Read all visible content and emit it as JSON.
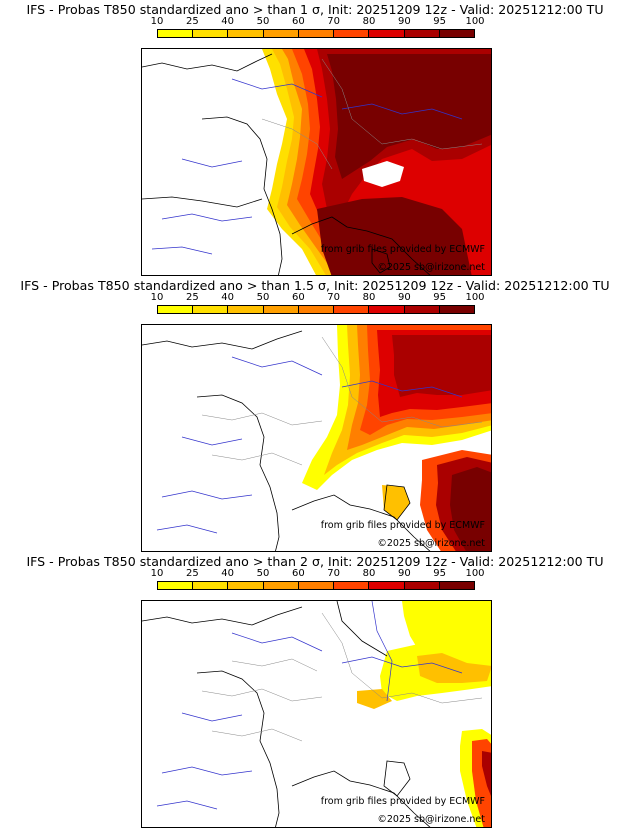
{
  "colorbar": {
    "ticks": [
      "10",
      "25",
      "40",
      "50",
      "60",
      "70",
      "80",
      "90",
      "95",
      "100"
    ],
    "colors": [
      "#ffff00",
      "#ffe000",
      "#ffc000",
      "#ff9f00",
      "#ff7f00",
      "#ff4400",
      "#dd0000",
      "#aa0000",
      "#780000"
    ]
  },
  "panels": [
    {
      "title": "IFS - Probas T850  standardized ano > than 1 σ, Init: 20251209 12z - Valid: 20251212:00 TU",
      "credit_source": "from grib files provided by ECMWF",
      "credit_copyright": "©2025 sb@irizone.net"
    },
    {
      "title": "IFS - Probas T850  standardized ano > than 1.5 σ, Init: 20251209 12z - Valid: 20251212:00 TU",
      "credit_source": "from grib files provided by ECMWF",
      "credit_copyright": "©2025 sb@irizone.net"
    },
    {
      "title": "IFS - Probas T850  standardized ano > than 2 σ, Init: 20251209 12z - Valid: 20251212:00 TU",
      "credit_source": "from grib files provided by ECMWF",
      "credit_copyright": "©2025 sb@irizone.net"
    }
  ]
}
